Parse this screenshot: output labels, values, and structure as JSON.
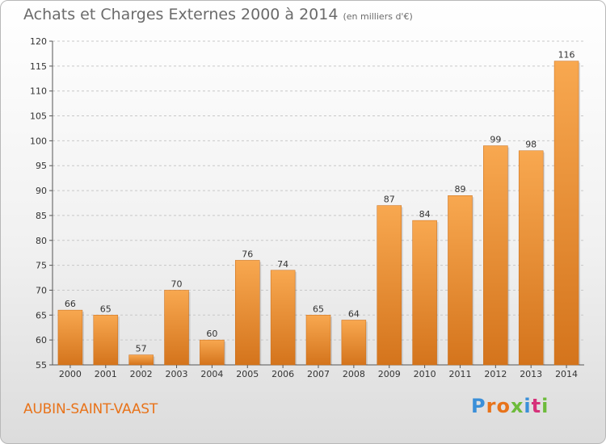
{
  "header": {
    "title": "Achats et Charges Externes 2000 à 2014",
    "unit": "(en milliers d'€)"
  },
  "footer": {
    "commune": "AUBIN-SAINT-VAAST",
    "brand": "Proxiti",
    "brand_colors": [
      "#3a8fd8",
      "#e8731a",
      "#e8731a",
      "#6dbb3b",
      "#3a8fd8",
      "#d6317a",
      "#6dbb3b"
    ]
  },
  "colors": {
    "bar_light": "#f6a04a",
    "bar_dark": "#d4741c",
    "accent": "#e8731a"
  },
  "chart_data": {
    "type": "bar",
    "title": "Achats et Charges Externes 2000 à 2014",
    "subtitle": "(en milliers d'€)",
    "categories": [
      "2000",
      "2001",
      "2002",
      "2003",
      "2004",
      "2005",
      "2006",
      "2007",
      "2008",
      "2009",
      "2010",
      "2011",
      "2012",
      "2013",
      "2014"
    ],
    "values": [
      66,
      65,
      57,
      70,
      60,
      76,
      74,
      65,
      64,
      87,
      84,
      89,
      99,
      98,
      116
    ],
    "ylim": [
      55,
      120
    ],
    "yticks": [
      55,
      60,
      65,
      70,
      75,
      80,
      85,
      90,
      95,
      100,
      105,
      110,
      115,
      120
    ],
    "grid": "horizontal dashed",
    "legend": "none"
  }
}
